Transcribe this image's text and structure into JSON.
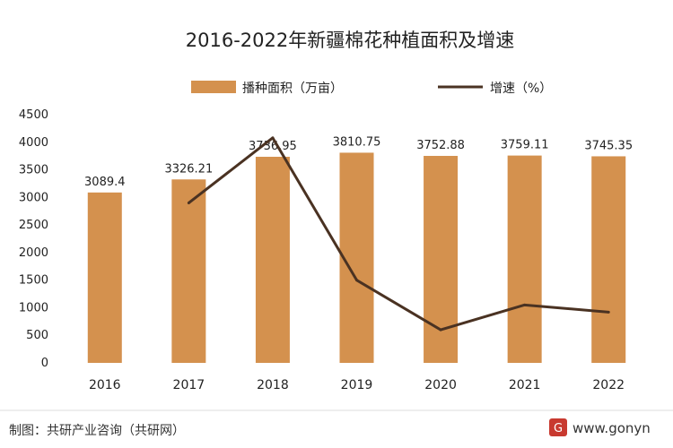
{
  "chart_data": {
    "type": "bar",
    "title": "2016-2022年新疆棉花种植面积及增速",
    "categories": [
      "2016",
      "2017",
      "2018",
      "2019",
      "2020",
      "2021",
      "2022"
    ],
    "ylim": [
      0,
      4500
    ],
    "y_ticks": [
      0,
      500,
      1000,
      1500,
      2000,
      2500,
      3000,
      3500,
      4000,
      4500
    ],
    "grid": false,
    "legend_position": "top",
    "series": [
      {
        "name": "播种面积（万亩）",
        "type": "bar",
        "color": "#d4914e",
        "values": [
          3089.4,
          3326.21,
          3736.95,
          3810.75,
          3752.88,
          3759.11,
          3745.35
        ],
        "labels": [
          "3089.4",
          "3326.21",
          "3736.95",
          "3810.75",
          "3752.88",
          "3759.11",
          "3745.35"
        ]
      },
      {
        "name": "增速（%）",
        "type": "line",
        "color": "#4a3222",
        "values": [
          null,
          2900,
          4080,
          1500,
          600,
          1050,
          920
        ]
      }
    ]
  },
  "footer": {
    "source": "制图：共研产业咨询（共研网）",
    "website": "www.gonyn"
  }
}
